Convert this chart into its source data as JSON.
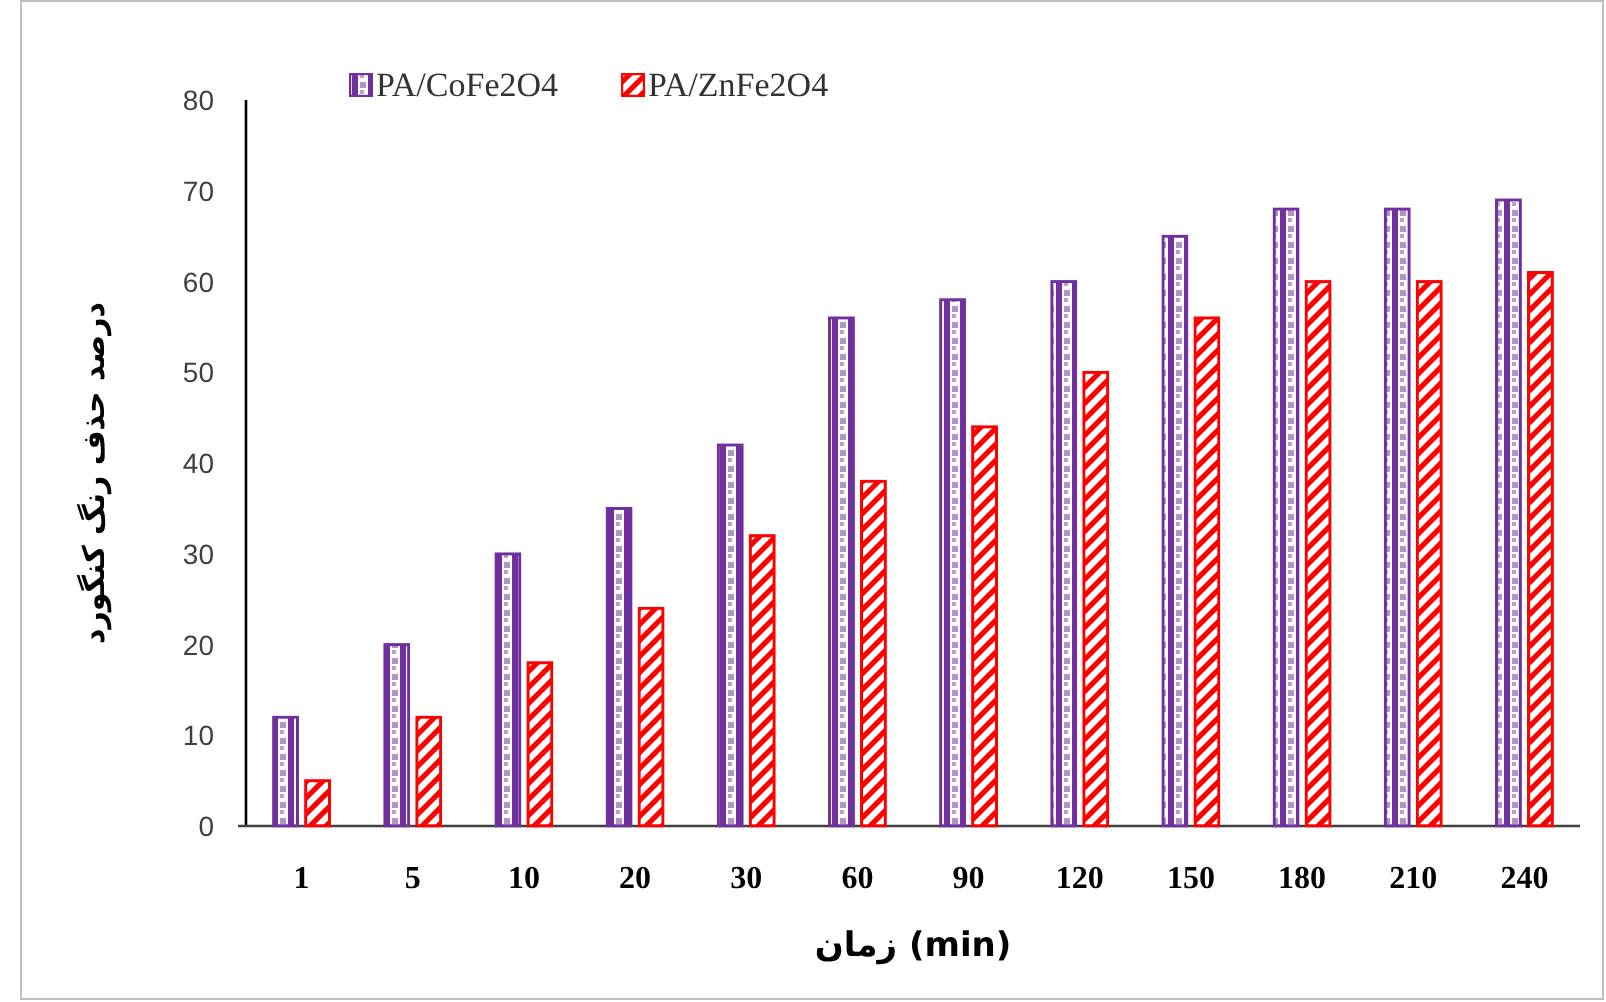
{
  "chart_data": {
    "type": "bar",
    "categories": [
      "1",
      "5",
      "10",
      "20",
      "30",
      "60",
      "90",
      "120",
      "150",
      "180",
      "210",
      "240"
    ],
    "series": [
      {
        "name": "PA/CoFe2O4",
        "color": "#7030a0",
        "values": [
          12,
          20,
          30,
          35,
          42,
          56,
          58,
          60,
          65,
          68,
          68,
          69
        ]
      },
      {
        "name": "PA/ZnFe2O4",
        "color": "#ff0000",
        "values": [
          5,
          12,
          18,
          24,
          32,
          38,
          44,
          50,
          56,
          60,
          60,
          61
        ]
      }
    ],
    "xlabel": "زمان (min)",
    "ylabel": "درصد حذف رنگ کنگورد",
    "ylim": [
      0,
      80
    ],
    "yticks": [
      0,
      10,
      20,
      30,
      40,
      50,
      60,
      70,
      80
    ],
    "legend": "top left",
    "grid": false
  }
}
